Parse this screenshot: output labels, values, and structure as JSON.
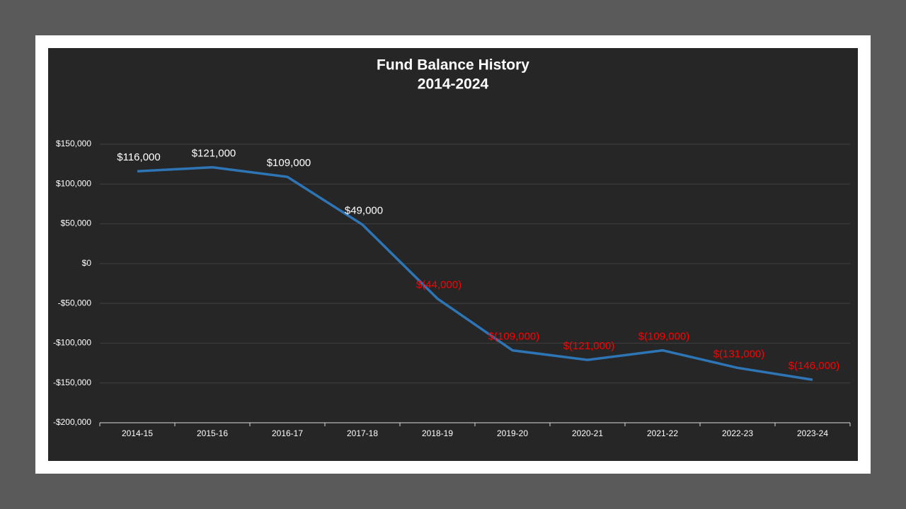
{
  "chart_data": {
    "type": "line",
    "title": "Fund Balance History",
    "subtitle": "2014-2024",
    "categories": [
      "2014-15",
      "2015-16",
      "2016-17",
      "2017-18",
      "2018-19",
      "2019-20",
      "2020-21",
      "2021-22",
      "2022-23",
      "2023-24"
    ],
    "series": [
      {
        "name": "Fund Balance",
        "color": "#2e75b6",
        "values": [
          116000,
          121000,
          109000,
          49000,
          -44000,
          -109000,
          -121000,
          -109000,
          -131000,
          -146000
        ],
        "value_labels": [
          "$116,000",
          "$121,000",
          "$109,000",
          "$49,000",
          "$(44,000)",
          "$(109,000)",
          "$(121,000)",
          "$(109,000)",
          "$(131,000)",
          "$(146,000)"
        ]
      }
    ],
    "label_color": "#ffffff",
    "negative_label_color": "#ff0000",
    "ylim": [
      -200000,
      150000
    ],
    "yticks": [
      {
        "value": -200000,
        "label": "-$200,000"
      },
      {
        "value": -150000,
        "label": "-$150,000"
      },
      {
        "value": -100000,
        "label": "-$100,000"
      },
      {
        "value": -50000,
        "label": "-$50,000"
      },
      {
        "value": 0,
        "label": "$0"
      },
      {
        "value": 50000,
        "label": "$50,000"
      },
      {
        "value": 100000,
        "label": "$100,000"
      },
      {
        "value": 150000,
        "label": "$150,000"
      }
    ],
    "grid": true
  }
}
